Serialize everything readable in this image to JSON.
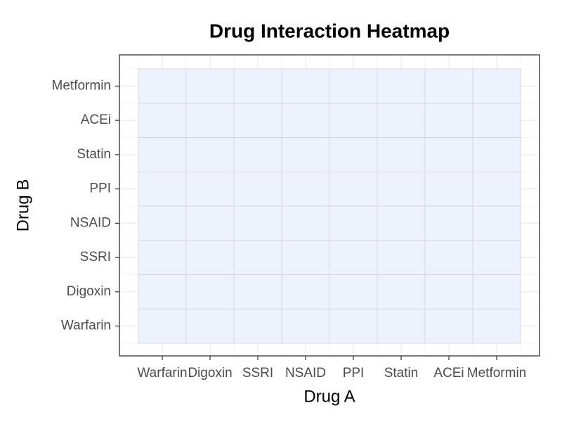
{
  "chart_data": {
    "type": "heatmap",
    "title": "Drug Interaction Heatmap",
    "x_label": "Drug A",
    "y_label": "Drug B",
    "categories": [
      "Warfarin",
      "Digoxin",
      "SSRI",
      "NSAID",
      "PPI",
      "Statin",
      "ACEi",
      "Metformin"
    ],
    "y_categories": [
      "Warfarin",
      "Digoxin",
      "SSRI",
      "NSAID",
      "PPI",
      "Statin",
      "ACEi",
      "Metformin"
    ],
    "values": [
      [
        0,
        0,
        0,
        0,
        0,
        0,
        0,
        0
      ],
      [
        0,
        0,
        0,
        0,
        0,
        0,
        0,
        0
      ],
      [
        0,
        0,
        0,
        0,
        0,
        0,
        0,
        0
      ],
      [
        0,
        0,
        0,
        0,
        0,
        0,
        0,
        0
      ],
      [
        0,
        0,
        0,
        0,
        0,
        0,
        0,
        0
      ],
      [
        0,
        0,
        0,
        0,
        0,
        0,
        0,
        0
      ],
      [
        0,
        0,
        0,
        0,
        0,
        0,
        0,
        0
      ],
      [
        0,
        0,
        0,
        0,
        0,
        0,
        0,
        0
      ]
    ],
    "color": "#eef2fd",
    "grid": true
  }
}
